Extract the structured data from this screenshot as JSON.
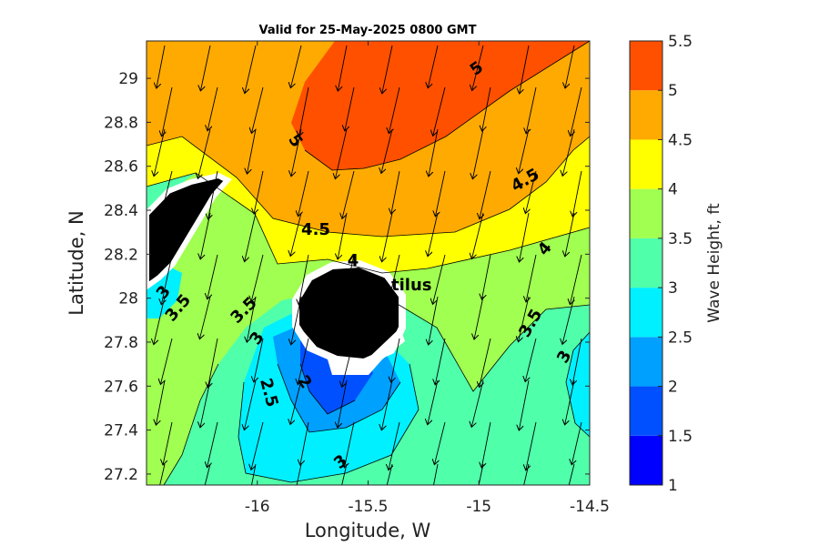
{
  "chart_data": {
    "type": "heatmap",
    "title": "Valid for 25-May-2025 0800 GMT",
    "xlabel": "Longitude, W",
    "ylabel": "Latitude, N",
    "xlim": [
      -16.5,
      -14.5
    ],
    "ylim": [
      27.15,
      29.17
    ],
    "x_ticks": [
      "-16",
      "-15.5",
      "-15",
      "-14.5"
    ],
    "x_tick_values": [
      -16,
      -15.5,
      -15,
      -14.5
    ],
    "y_ticks": [
      "29",
      "28.8",
      "28.6",
      "28.4",
      "28.2",
      "28",
      "27.8",
      "27.6",
      "27.4",
      "27.2"
    ],
    "y_tick_values": [
      29,
      28.8,
      28.6,
      28.4,
      28.2,
      28,
      27.8,
      27.6,
      27.4,
      27.2
    ],
    "colorbar": {
      "label": "Wave Height, ft",
      "levels": [
        1,
        1.5,
        2,
        2.5,
        3,
        3.5,
        4,
        4.5,
        5,
        5.5
      ],
      "tick_labels": [
        "1",
        "1.5",
        "2",
        "2.5",
        "3",
        "3.5",
        "4",
        "4.5",
        "5",
        "5.5"
      ],
      "colors": [
        "#0000ff",
        "#0050ff",
        "#00a0ff",
        "#00f0ff",
        "#50ffaa",
        "#a0ff50",
        "#ffff00",
        "#ffaa00",
        "#ff5000"
      ]
    },
    "contour_labels": [
      "5",
      "5",
      "4.5",
      "4.5",
      "4",
      "4",
      "3.5",
      "3.5",
      "3.5",
      "3",
      "3",
      "3",
      "3",
      "2.5",
      "2"
    ],
    "place_label": "tilus",
    "grid": false,
    "arrows": "wind/swell direction arrows pointing roughly south-southwest"
  }
}
